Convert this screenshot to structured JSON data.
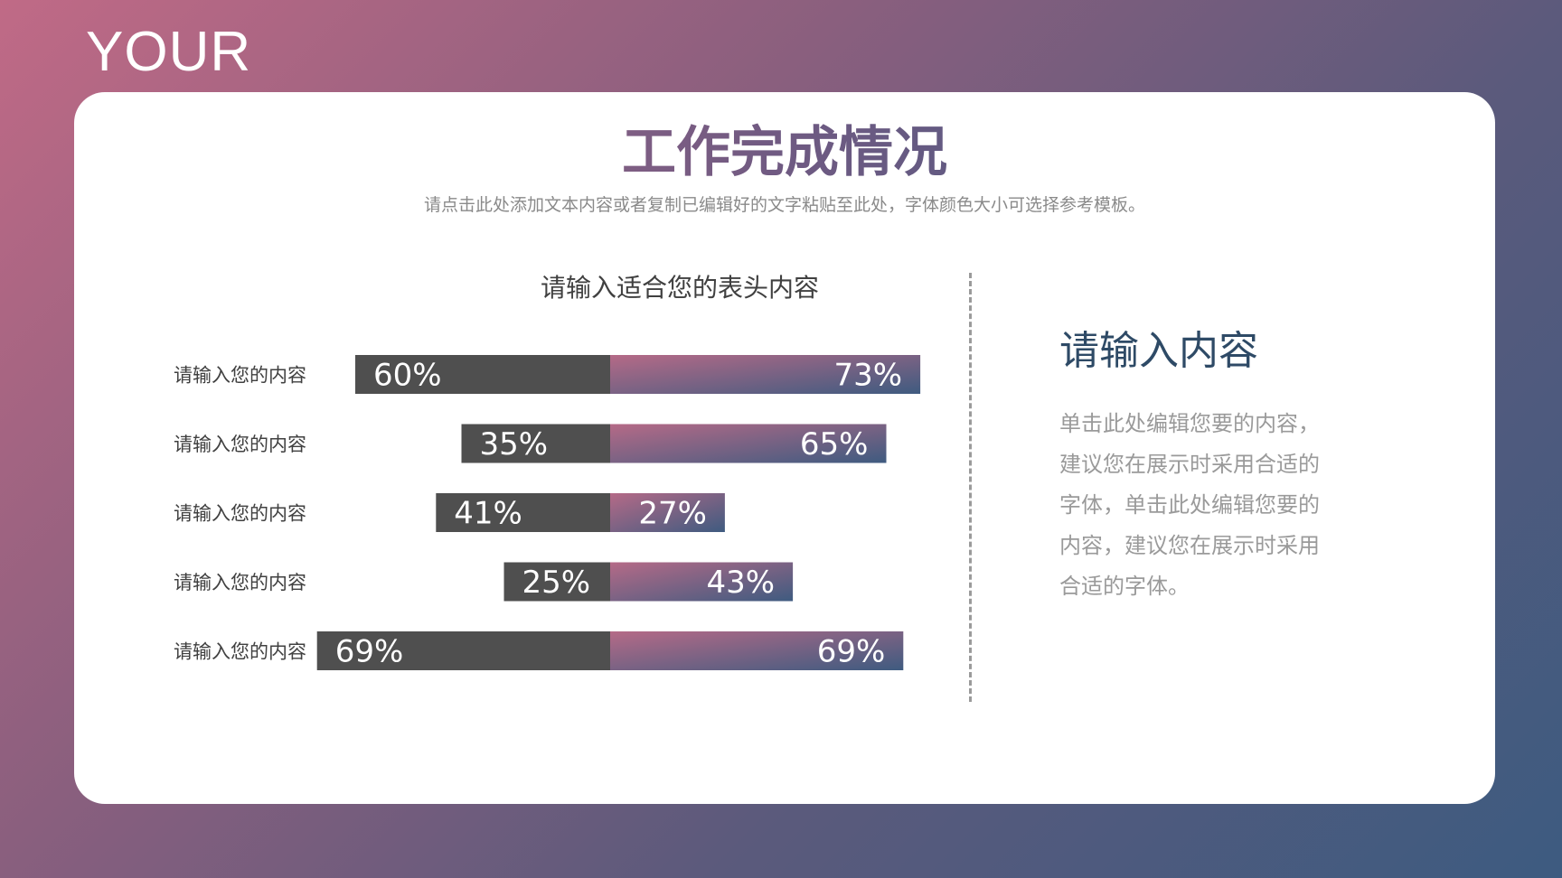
{
  "corner_word": "YOUR",
  "title": "工作完成情况",
  "subtitle": "请点击此处添加文本内容或者复制已编辑好的文字粘贴至此处，字体颜色大小可选择参考模板。",
  "side": {
    "heading": "请输入内容",
    "text": "单击此处编辑您要的内容，建议您在展示时采用合适的字体，单击此处编辑您要的内容，建议您在展示时采用合适的字体。"
  },
  "colors": {
    "left_bar": "#4f4f4f",
    "right_bar_start": "#b56a87",
    "right_bar_end": "#3f5b80"
  },
  "chart_data": {
    "type": "bar",
    "orientation": "horizontal-diverging",
    "title": "请输入适合您的表头内容",
    "categories": [
      "请输入您的内容",
      "请输入您的内容",
      "请输入您的内容",
      "请输入您的内容",
      "请输入您的内容"
    ],
    "series": [
      {
        "values": [
          60,
          35,
          41,
          25,
          69
        ],
        "labels": [
          "60%",
          "35%",
          "41%",
          "25%",
          "69%"
        ]
      },
      {
        "values": [
          73,
          65,
          27,
          43,
          69
        ],
        "labels": [
          "73%",
          "65%",
          "27%",
          "43%",
          "69%"
        ]
      }
    ],
    "xlim": [
      0,
      100
    ],
    "grid": false,
    "legend": "none"
  }
}
